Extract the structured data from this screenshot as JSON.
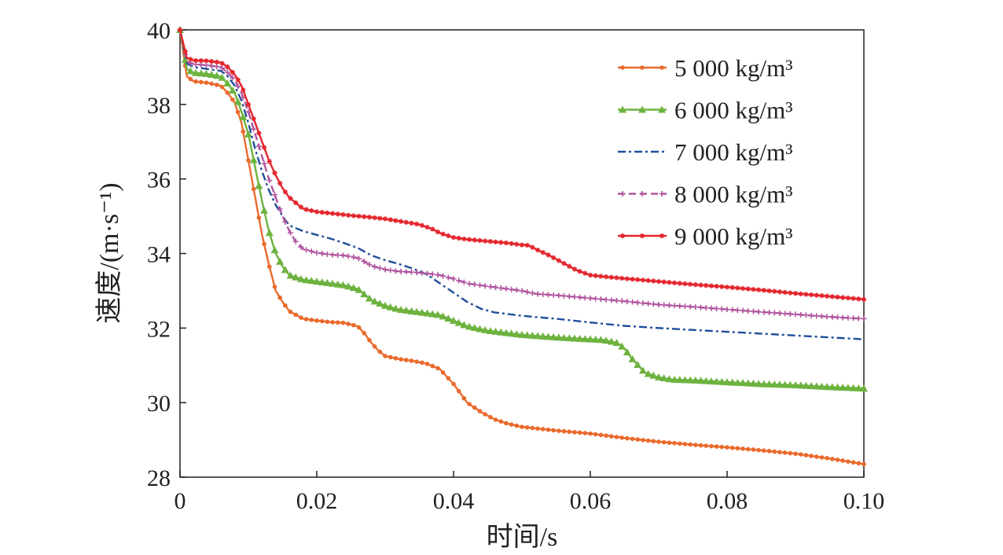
{
  "chart_data": {
    "type": "line",
    "xlabel": "时间/s",
    "ylabel": "速度/(m·s⁻¹)",
    "xlim": [
      0,
      0.1
    ],
    "ylim": [
      28,
      40
    ],
    "xticks": [
      {
        "value": 0,
        "label": "0"
      },
      {
        "value": 0.02,
        "label": "0.02"
      },
      {
        "value": 0.04,
        "label": "0.04"
      },
      {
        "value": 0.06,
        "label": "0.06"
      },
      {
        "value": 0.08,
        "label": "0.08"
      },
      {
        "value": 0.1,
        "label": "0.10"
      }
    ],
    "yticks": [
      {
        "value": 28,
        "label": "28"
      },
      {
        "value": 30,
        "label": "30"
      },
      {
        "value": 32,
        "label": "32"
      },
      {
        "value": 34,
        "label": "34"
      },
      {
        "value": 36,
        "label": "36"
      },
      {
        "value": 38,
        "label": "38"
      },
      {
        "value": 40,
        "label": "40"
      }
    ],
    "grid": false,
    "legend_position": "top-right",
    "series": [
      {
        "name": "5 000 kg/m³",
        "color": "#ea6a2d",
        "line_style": "solid",
        "marker": "circle",
        "points": [
          [
            0,
            40.0
          ],
          [
            0.001,
            38.75
          ],
          [
            0.002,
            38.62
          ],
          [
            0.004,
            38.58
          ],
          [
            0.006,
            38.5
          ],
          [
            0.007,
            38.3
          ],
          [
            0.008,
            38.05
          ],
          [
            0.009,
            37.5
          ],
          [
            0.0095,
            37.0
          ],
          [
            0.01,
            36.5
          ],
          [
            0.011,
            35.5
          ],
          [
            0.012,
            34.5
          ],
          [
            0.013,
            33.7
          ],
          [
            0.014,
            33.0
          ],
          [
            0.015,
            32.7
          ],
          [
            0.016,
            32.45
          ],
          [
            0.018,
            32.25
          ],
          [
            0.02,
            32.2
          ],
          [
            0.022,
            32.16
          ],
          [
            0.024,
            32.14
          ],
          [
            0.026,
            32.05
          ],
          [
            0.027,
            31.85
          ],
          [
            0.028,
            31.6
          ],
          [
            0.029,
            31.4
          ],
          [
            0.03,
            31.25
          ],
          [
            0.032,
            31.17
          ],
          [
            0.034,
            31.12
          ],
          [
            0.036,
            31.05
          ],
          [
            0.038,
            30.9
          ],
          [
            0.039,
            30.7
          ],
          [
            0.04,
            30.5
          ],
          [
            0.041,
            30.25
          ],
          [
            0.042,
            30.0
          ],
          [
            0.044,
            29.75
          ],
          [
            0.046,
            29.55
          ],
          [
            0.048,
            29.43
          ],
          [
            0.05,
            29.35
          ],
          [
            0.055,
            29.25
          ],
          [
            0.06,
            29.17
          ],
          [
            0.065,
            29.05
          ],
          [
            0.07,
            28.95
          ],
          [
            0.075,
            28.87
          ],
          [
            0.08,
            28.8
          ],
          [
            0.085,
            28.72
          ],
          [
            0.09,
            28.63
          ],
          [
            0.095,
            28.5
          ],
          [
            0.1,
            28.35
          ]
        ]
      },
      {
        "name": "6 000 kg/m³",
        "color": "#6db33f",
        "line_style": "solid",
        "marker": "triangle",
        "points": [
          [
            0,
            40.0
          ],
          [
            0.001,
            38.95
          ],
          [
            0.002,
            38.85
          ],
          [
            0.004,
            38.82
          ],
          [
            0.006,
            38.75
          ],
          [
            0.007,
            38.55
          ],
          [
            0.008,
            38.3
          ],
          [
            0.009,
            37.8
          ],
          [
            0.01,
            37.2
          ],
          [
            0.011,
            36.3
          ],
          [
            0.012,
            35.4
          ],
          [
            0.013,
            34.6
          ],
          [
            0.014,
            34.0
          ],
          [
            0.015,
            33.65
          ],
          [
            0.016,
            33.42
          ],
          [
            0.018,
            33.3
          ],
          [
            0.02,
            33.25
          ],
          [
            0.022,
            33.2
          ],
          [
            0.024,
            33.15
          ],
          [
            0.026,
            33.05
          ],
          [
            0.027,
            32.9
          ],
          [
            0.028,
            32.75
          ],
          [
            0.03,
            32.6
          ],
          [
            0.032,
            32.5
          ],
          [
            0.034,
            32.45
          ],
          [
            0.036,
            32.4
          ],
          [
            0.038,
            32.35
          ],
          [
            0.04,
            32.2
          ],
          [
            0.042,
            32.05
          ],
          [
            0.045,
            31.93
          ],
          [
            0.05,
            31.82
          ],
          [
            0.055,
            31.75
          ],
          [
            0.06,
            31.7
          ],
          [
            0.062,
            31.68
          ],
          [
            0.064,
            31.6
          ],
          [
            0.065,
            31.45
          ],
          [
            0.066,
            31.2
          ],
          [
            0.067,
            31.0
          ],
          [
            0.068,
            30.8
          ],
          [
            0.07,
            30.68
          ],
          [
            0.072,
            30.62
          ],
          [
            0.075,
            30.6
          ],
          [
            0.08,
            30.55
          ],
          [
            0.085,
            30.5
          ],
          [
            0.09,
            30.47
          ],
          [
            0.095,
            30.42
          ],
          [
            0.1,
            30.38
          ]
        ]
      },
      {
        "name": "7 000 kg/m³",
        "color": "#1f4e9b",
        "line_style": "dash-dot",
        "marker": "none",
        "points": [
          [
            0,
            40.0
          ],
          [
            0.001,
            39.1
          ],
          [
            0.002,
            39.0
          ],
          [
            0.004,
            38.95
          ],
          [
            0.006,
            38.9
          ],
          [
            0.007,
            38.75
          ],
          [
            0.008,
            38.5
          ],
          [
            0.009,
            38.1
          ],
          [
            0.01,
            37.5
          ],
          [
            0.011,
            36.8
          ],
          [
            0.012,
            36.2
          ],
          [
            0.013,
            35.7
          ],
          [
            0.014,
            35.3
          ],
          [
            0.015,
            35.0
          ],
          [
            0.016,
            34.75
          ],
          [
            0.018,
            34.6
          ],
          [
            0.02,
            34.5
          ],
          [
            0.022,
            34.4
          ],
          [
            0.024,
            34.28
          ],
          [
            0.026,
            34.15
          ],
          [
            0.028,
            33.95
          ],
          [
            0.03,
            33.82
          ],
          [
            0.032,
            33.72
          ],
          [
            0.034,
            33.6
          ],
          [
            0.036,
            33.45
          ],
          [
            0.038,
            33.2
          ],
          [
            0.04,
            32.95
          ],
          [
            0.042,
            32.7
          ],
          [
            0.044,
            32.52
          ],
          [
            0.046,
            32.42
          ],
          [
            0.05,
            32.33
          ],
          [
            0.055,
            32.25
          ],
          [
            0.06,
            32.15
          ],
          [
            0.065,
            32.06
          ],
          [
            0.07,
            32.0
          ],
          [
            0.075,
            31.95
          ],
          [
            0.08,
            31.9
          ],
          [
            0.085,
            31.85
          ],
          [
            0.09,
            31.8
          ],
          [
            0.095,
            31.75
          ],
          [
            0.1,
            31.7
          ]
        ]
      },
      {
        "name": "8 000 kg/m³",
        "color": "#b0559f",
        "line_style": "dashed",
        "marker": "plus",
        "points": [
          [
            0,
            40.0
          ],
          [
            0.001,
            39.15
          ],
          [
            0.002,
            39.08
          ],
          [
            0.004,
            39.05
          ],
          [
            0.006,
            39.0
          ],
          [
            0.007,
            38.85
          ],
          [
            0.008,
            38.65
          ],
          [
            0.009,
            38.3
          ],
          [
            0.01,
            37.8
          ],
          [
            0.011,
            37.2
          ],
          [
            0.012,
            36.6
          ],
          [
            0.013,
            36.0
          ],
          [
            0.014,
            35.5
          ],
          [
            0.015,
            35.0
          ],
          [
            0.016,
            34.6
          ],
          [
            0.017,
            34.3
          ],
          [
            0.018,
            34.12
          ],
          [
            0.02,
            34.02
          ],
          [
            0.022,
            33.97
          ],
          [
            0.024,
            33.95
          ],
          [
            0.026,
            33.88
          ],
          [
            0.027,
            33.78
          ],
          [
            0.028,
            33.67
          ],
          [
            0.03,
            33.57
          ],
          [
            0.032,
            33.52
          ],
          [
            0.034,
            33.5
          ],
          [
            0.036,
            33.47
          ],
          [
            0.038,
            33.42
          ],
          [
            0.04,
            33.32
          ],
          [
            0.042,
            33.2
          ],
          [
            0.045,
            33.12
          ],
          [
            0.05,
            33.0
          ],
          [
            0.052,
            32.92
          ],
          [
            0.055,
            32.88
          ],
          [
            0.06,
            32.8
          ],
          [
            0.065,
            32.72
          ],
          [
            0.07,
            32.63
          ],
          [
            0.075,
            32.57
          ],
          [
            0.08,
            32.5
          ],
          [
            0.085,
            32.43
          ],
          [
            0.09,
            32.37
          ],
          [
            0.095,
            32.3
          ],
          [
            0.1,
            32.25
          ]
        ]
      },
      {
        "name": "9 000 kg/m³",
        "color": "#e3242b",
        "line_style": "solid",
        "marker": "star",
        "points": [
          [
            0,
            40.0
          ],
          [
            0.001,
            39.25
          ],
          [
            0.002,
            39.18
          ],
          [
            0.004,
            39.17
          ],
          [
            0.006,
            39.12
          ],
          [
            0.007,
            39.0
          ],
          [
            0.008,
            38.8
          ],
          [
            0.009,
            38.5
          ],
          [
            0.01,
            38.0
          ],
          [
            0.011,
            37.5
          ],
          [
            0.012,
            37.0
          ],
          [
            0.013,
            36.5
          ],
          [
            0.014,
            36.1
          ],
          [
            0.015,
            35.75
          ],
          [
            0.016,
            35.5
          ],
          [
            0.017,
            35.35
          ],
          [
            0.018,
            35.2
          ],
          [
            0.02,
            35.12
          ],
          [
            0.022,
            35.08
          ],
          [
            0.025,
            35.02
          ],
          [
            0.028,
            34.97
          ],
          [
            0.03,
            34.93
          ],
          [
            0.032,
            34.87
          ],
          [
            0.035,
            34.78
          ],
          [
            0.037,
            34.65
          ],
          [
            0.038,
            34.55
          ],
          [
            0.04,
            34.43
          ],
          [
            0.042,
            34.38
          ],
          [
            0.045,
            34.33
          ],
          [
            0.048,
            34.28
          ],
          [
            0.05,
            34.23
          ],
          [
            0.051,
            34.22
          ],
          [
            0.052,
            34.12
          ],
          [
            0.054,
            33.95
          ],
          [
            0.056,
            33.75
          ],
          [
            0.058,
            33.55
          ],
          [
            0.06,
            33.42
          ],
          [
            0.062,
            33.38
          ],
          [
            0.065,
            33.33
          ],
          [
            0.07,
            33.25
          ],
          [
            0.075,
            33.17
          ],
          [
            0.08,
            33.1
          ],
          [
            0.085,
            33.02
          ],
          [
            0.09,
            32.93
          ],
          [
            0.095,
            32.85
          ],
          [
            0.1,
            32.77
          ]
        ]
      }
    ]
  }
}
